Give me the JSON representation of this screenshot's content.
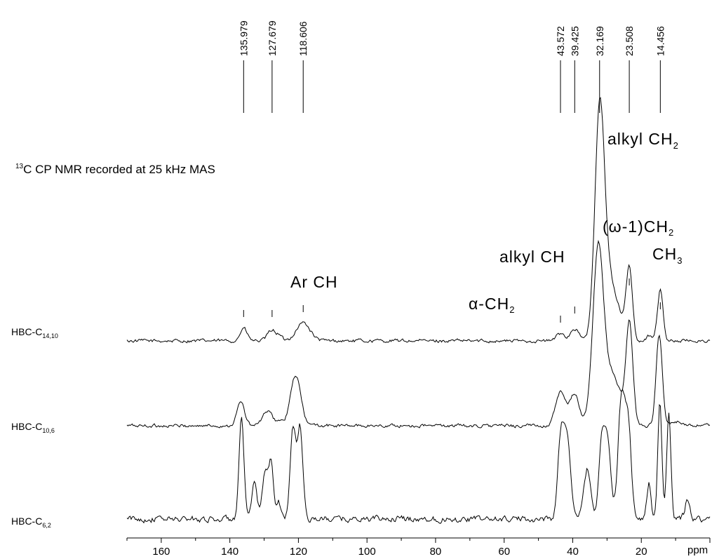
{
  "chart_data": {
    "type": "line",
    "title": "",
    "subtitle": {
      "superscript": "13",
      "text": "C CP NMR recorded at 25 kHz MAS"
    },
    "xlabel": "ppm",
    "xlim": [
      170,
      0
    ],
    "x_reversed": true,
    "x_ticks": [
      160,
      140,
      120,
      100,
      80,
      60,
      40,
      20
    ],
    "grid": false,
    "peak_labels": [
      "135.979",
      "127.679",
      "118.606",
      "43.572",
      "39.425",
      "32.169",
      "23.508",
      "14.456"
    ],
    "peak_positions": [
      135.979,
      127.679,
      118.606,
      43.572,
      39.425,
      32.169,
      23.508,
      14.456
    ],
    "annotations": [
      {
        "id": "ar_ch",
        "text": "Ar CH"
      },
      {
        "id": "alpha_ch2",
        "prefix": "α",
        "text": "-CH",
        "sub": "2"
      },
      {
        "id": "alkyl_ch",
        "text": "alkyl CH"
      },
      {
        "id": "alkyl_ch2",
        "text": "alkyl CH",
        "sub": "2"
      },
      {
        "id": "omega_ch2",
        "prefix": "(ω",
        "text": "-1)CH",
        "sub": "2"
      },
      {
        "id": "ch3",
        "text": "CH",
        "sub": "3"
      }
    ],
    "series": [
      {
        "name": "HBC-C14,10",
        "label_main": "HBC-C",
        "label_sub": "14,10",
        "noise": 0.035,
        "peaks": [
          [
            135.979,
            0.14,
            1.0
          ],
          [
            127.679,
            0.12,
            1.2
          ],
          [
            125.5,
            0.04,
            0.8
          ],
          [
            118.606,
            0.2,
            2.0
          ],
          [
            43.572,
            0.08,
            1.2
          ],
          [
            39.425,
            0.13,
            1.3
          ],
          [
            32.169,
            2.45,
            1.4
          ],
          [
            29.5,
            0.6,
            1.8
          ],
          [
            26.5,
            0.22,
            1.5
          ],
          [
            23.508,
            0.8,
            0.9
          ],
          [
            17.5,
            0.06,
            1.0
          ],
          [
            14.456,
            0.56,
            0.8
          ]
        ]
      },
      {
        "name": "HBC-C10,6",
        "label_main": "HBC-C",
        "label_sub": "10,6",
        "noise": 0.035,
        "peaks": [
          [
            136.8,
            0.26,
            1.1
          ],
          [
            129.0,
            0.16,
            1.4
          ],
          [
            125.5,
            0.05,
            0.9
          ],
          [
            120.8,
            0.55,
            1.5
          ],
          [
            43.6,
            0.36,
            1.4
          ],
          [
            39.5,
            0.35,
            1.4
          ],
          [
            32.5,
            2.0,
            1.6
          ],
          [
            28.5,
            0.5,
            1.5
          ],
          [
            26.0,
            0.2,
            1.2
          ],
          [
            23.5,
            1.14,
            1.0
          ],
          [
            14.8,
            1.0,
            0.9
          ],
          [
            10.0,
            0.05,
            1.0
          ]
        ]
      },
      {
        "name": "HBC-C6,2",
        "label_main": "HBC-C",
        "label_sub": "6,2",
        "noise": 0.06,
        "peaks": [
          [
            136.6,
            1.1,
            0.7
          ],
          [
            132.8,
            0.4,
            0.7
          ],
          [
            129.8,
            0.5,
            0.8
          ],
          [
            128.0,
            0.6,
            0.7
          ],
          [
            125.8,
            0.2,
            0.7
          ],
          [
            121.6,
            1.0,
            0.8
          ],
          [
            119.5,
            1.0,
            0.8
          ],
          [
            43.4,
            0.95,
            0.9
          ],
          [
            41.5,
            0.85,
            0.9
          ],
          [
            35.8,
            0.55,
            1.0
          ],
          [
            31.5,
            0.85,
            0.9
          ],
          [
            29.8,
            0.78,
            0.9
          ],
          [
            25.8,
            1.3,
            1.0
          ],
          [
            23.8,
            1.0,
            0.9
          ],
          [
            17.8,
            0.4,
            0.6
          ],
          [
            14.6,
            1.25,
            0.6
          ],
          [
            12.0,
            1.15,
            0.6
          ],
          [
            6.5,
            0.22,
            0.7
          ]
        ]
      }
    ]
  }
}
